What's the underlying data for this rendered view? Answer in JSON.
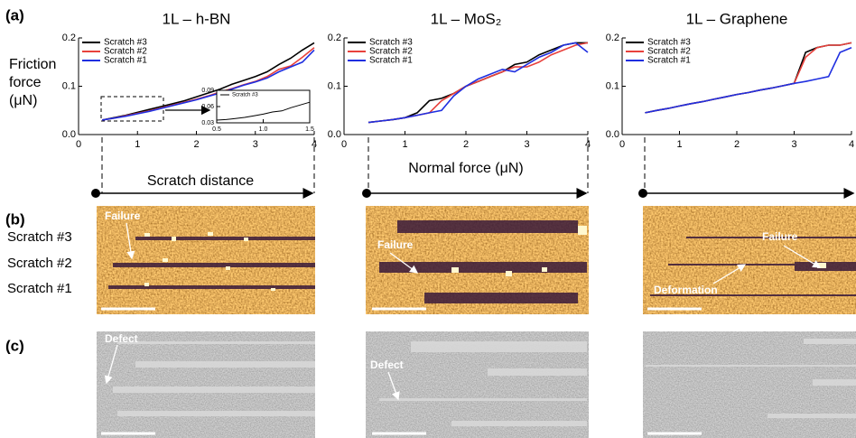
{
  "chart_data": [
    {
      "type": "line",
      "title": "1L – h-BN",
      "y_label": "Friction force (μN)",
      "x": [
        0.4,
        0.6,
        0.8,
        1.0,
        1.2,
        1.4,
        1.6,
        1.8,
        2.0,
        2.2,
        2.4,
        2.6,
        2.8,
        3.0,
        3.2,
        3.4,
        3.6,
        3.8,
        4.0
      ],
      "series": [
        {
          "name": "Scratch #3",
          "color": "#000000",
          "values": [
            0.03,
            0.035,
            0.04,
            0.046,
            0.052,
            0.058,
            0.064,
            0.07,
            0.078,
            0.086,
            0.094,
            0.104,
            0.112,
            0.12,
            0.13,
            0.145,
            0.158,
            0.175,
            0.19
          ]
        },
        {
          "name": "Scratch #2",
          "color": "#e8413c",
          "values": [
            0.03,
            0.034,
            0.039,
            0.044,
            0.049,
            0.055,
            0.061,
            0.067,
            0.073,
            0.08,
            0.088,
            0.095,
            0.103,
            0.11,
            0.12,
            0.135,
            0.142,
            0.16,
            0.18
          ]
        },
        {
          "name": "Scratch #1",
          "color": "#1f2fe0",
          "values": [
            0.03,
            0.034,
            0.038,
            0.043,
            0.048,
            0.054,
            0.06,
            0.066,
            0.072,
            0.079,
            0.086,
            0.094,
            0.102,
            0.109,
            0.117,
            0.13,
            0.14,
            0.15,
            0.175
          ]
        }
      ],
      "xlim": [
        0,
        4
      ],
      "xticks": [
        0,
        1,
        2,
        3,
        4
      ],
      "ylim": [
        0,
        0.2
      ],
      "yticks": [
        {
          "value": 0,
          "label": "0.0"
        },
        0.1,
        0.2
      ],
      "legend": "upper left"
    },
    {
      "type": "line",
      "title": "1L – MoS₂",
      "x_label": "Normal force (μN)",
      "x": [
        0.4,
        0.6,
        0.8,
        1.0,
        1.2,
        1.4,
        1.6,
        1.8,
        2.0,
        2.2,
        2.4,
        2.6,
        2.8,
        3.0,
        3.2,
        3.4,
        3.6,
        3.8,
        4.0
      ],
      "series": [
        {
          "name": "Scratch #3",
          "color": "#000000",
          "values": [
            0.025,
            0.028,
            0.031,
            0.035,
            0.045,
            0.07,
            0.075,
            0.085,
            0.1,
            0.11,
            0.12,
            0.13,
            0.145,
            0.15,
            0.165,
            0.175,
            0.185,
            0.19,
            0.19
          ]
        },
        {
          "name": "Scratch #2",
          "color": "#e8413c",
          "values": [
            0.025,
            0.028,
            0.031,
            0.035,
            0.04,
            0.045,
            0.07,
            0.085,
            0.1,
            0.11,
            0.12,
            0.13,
            0.14,
            0.14,
            0.15,
            0.165,
            0.175,
            0.185,
            0.19
          ]
        },
        {
          "name": "Scratch #1",
          "color": "#1f2fe0",
          "values": [
            0.025,
            0.028,
            0.031,
            0.035,
            0.04,
            0.045,
            0.05,
            0.08,
            0.1,
            0.115,
            0.125,
            0.135,
            0.13,
            0.145,
            0.16,
            0.17,
            0.185,
            0.19,
            0.17
          ]
        }
      ],
      "xlim": [
        0,
        4
      ],
      "xticks": [
        0,
        1,
        2,
        3,
        4
      ],
      "ylim": [
        0,
        0.2
      ],
      "yticks": [
        {
          "value": 0,
          "label": "0.0"
        },
        0.1,
        0.2
      ],
      "legend": "upper left"
    },
    {
      "type": "line",
      "title": "1L – Graphene",
      "x": [
        0.4,
        0.6,
        0.8,
        1.0,
        1.2,
        1.4,
        1.6,
        1.8,
        2.0,
        2.2,
        2.4,
        2.6,
        2.8,
        3.0,
        3.2,
        3.4,
        3.6,
        3.8,
        4.0
      ],
      "series": [
        {
          "name": "Scratch #3",
          "color": "#000000",
          "values": [
            0.045,
            0.05,
            0.054,
            0.059,
            0.064,
            0.068,
            0.073,
            0.078,
            0.083,
            0.087,
            0.092,
            0.096,
            0.101,
            0.106,
            0.17,
            0.18,
            0.185,
            0.185,
            0.19
          ]
        },
        {
          "name": "Scratch #2",
          "color": "#e8413c",
          "values": [
            0.045,
            0.05,
            0.054,
            0.059,
            0.064,
            0.068,
            0.073,
            0.078,
            0.083,
            0.087,
            0.092,
            0.096,
            0.101,
            0.106,
            0.16,
            0.18,
            0.185,
            0.185,
            0.19
          ]
        },
        {
          "name": "Scratch #1",
          "color": "#1f2fe0",
          "values": [
            0.045,
            0.05,
            0.054,
            0.059,
            0.064,
            0.068,
            0.073,
            0.078,
            0.083,
            0.087,
            0.092,
            0.096,
            0.101,
            0.106,
            0.11,
            0.115,
            0.12,
            0.17,
            0.18
          ]
        }
      ],
      "xlim": [
        0,
        4
      ],
      "xticks": [
        0,
        1,
        2,
        3,
        4
      ],
      "ylim": [
        0,
        0.2
      ],
      "yticks": [
        {
          "value": 0,
          "label": "0.0"
        },
        0.1,
        0.2
      ],
      "legend": "upper left"
    },
    {
      "type": "line",
      "x": [
        0.5,
        0.6,
        0.7,
        0.8,
        0.9,
        1.0,
        1.1,
        1.2,
        1.3,
        1.4,
        1.5
      ],
      "series": [
        {
          "name": "Scratch #3",
          "color": "#000000",
          "values": [
            0.035,
            0.036,
            0.038,
            0.04,
            0.043,
            0.046,
            0.05,
            0.052,
            0.058,
            0.063,
            0.068
          ]
        }
      ],
      "xlim": [
        0.5,
        1.5
      ],
      "xticks": [
        0.5,
        {
          "value": 1,
          "label": "1.0"
        },
        1.5
      ],
      "ylim": [
        0.03,
        0.09
      ],
      "yticks": [
        0.03,
        0.06,
        0.09
      ],
      "legend": "upper left"
    }
  ],
  "figure": {
    "panels": [
      "(a)",
      "(b)",
      "(c)"
    ],
    "arrow_label": "Scratch distance",
    "row_labels": [
      "Scratch #3",
      "Scratch #2",
      "Scratch #1"
    ],
    "annotations": [
      "Failure",
      "Failure",
      "Failure",
      "Deformation",
      "Defect",
      "Defect"
    ]
  }
}
